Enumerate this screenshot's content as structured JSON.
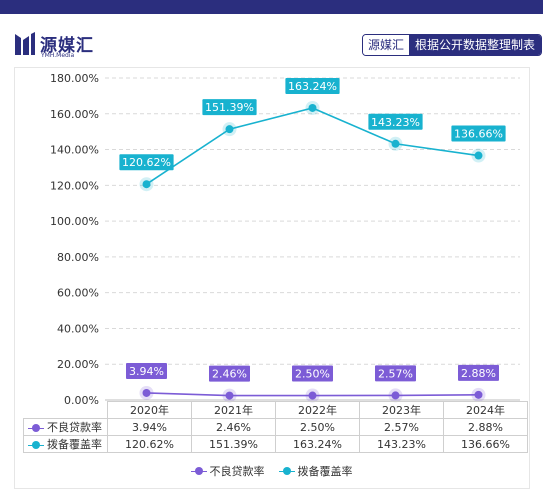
{
  "header": {
    "logo_name": "源媒汇",
    "logo_sub": "YMH.Media",
    "source_brand": "源媒汇",
    "source_note": "根据公开数据整理制表"
  },
  "colors": {
    "npl": "#7c5cd6",
    "coverage": "#18b2cf",
    "brand": "#2b2e7e"
  },
  "chart_data": {
    "type": "line",
    "categories": [
      "2020年",
      "2021年",
      "2022年",
      "2023年",
      "2024年"
    ],
    "y_ticks": [
      "0.00%",
      "20.00%",
      "40.00%",
      "60.00%",
      "80.00%",
      "100.00%",
      "120.00%",
      "140.00%",
      "160.00%",
      "180.00%"
    ],
    "ylim": [
      0,
      180
    ],
    "grid": true,
    "legend_position": "bottom",
    "series": [
      {
        "name": "不良贷款率",
        "values": [
          3.94,
          2.46,
          2.5,
          2.57,
          2.88
        ],
        "labels": [
          "3.94%",
          "2.46%",
          "2.50%",
          "2.57%",
          "2.88%"
        ]
      },
      {
        "name": "拨备覆盖率",
        "values": [
          120.62,
          151.39,
          163.24,
          143.23,
          136.66
        ],
        "labels": [
          "120.62%",
          "151.39%",
          "163.24%",
          "143.23%",
          "136.66%"
        ]
      }
    ]
  }
}
